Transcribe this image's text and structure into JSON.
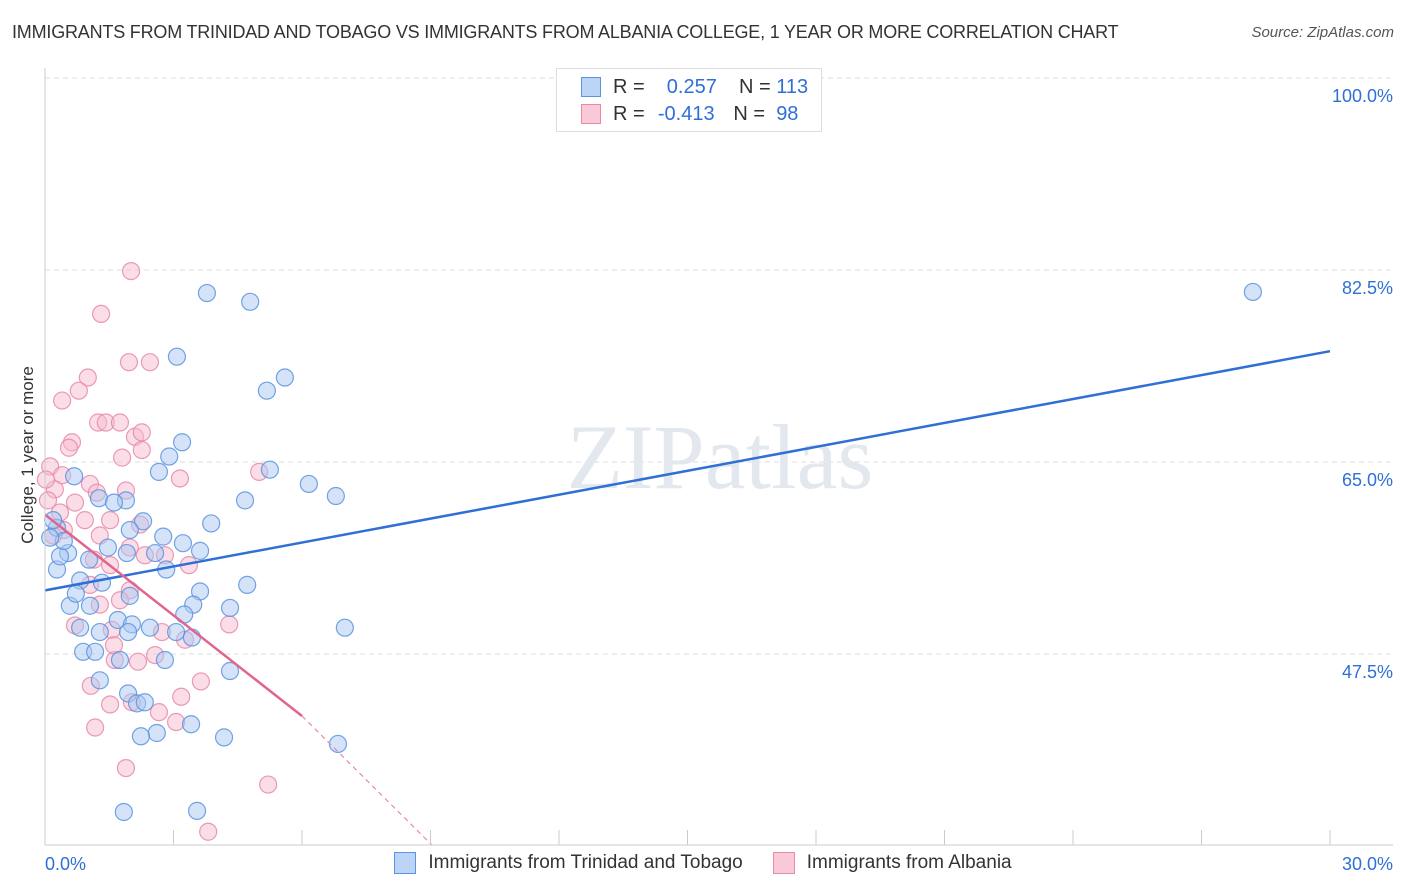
{
  "title": "IMMIGRANTS FROM TRINIDAD AND TOBAGO VS IMMIGRANTS FROM ALBANIA COLLEGE, 1 YEAR OR MORE CORRELATION CHART",
  "source": "Source: ZipAtlas.com",
  "watermark": "ZIPatlas",
  "legend": [
    {
      "r_label": "R =",
      "r": "0.257",
      "n_label": "N =",
      "n": "113"
    },
    {
      "r_label": "R =",
      "r": "-0.413",
      "n_label": "N =",
      "n": "98"
    }
  ],
  "chart_data": {
    "type": "scatter",
    "title": "IMMIGRANTS FROM TRINIDAD AND TOBAGO VS IMMIGRANTS FROM ALBANIA COLLEGE, 1 YEAR OR MORE CORRELATION CHART",
    "xlabel": "",
    "ylabel": "College, 1 year or more",
    "xlim": [
      0,
      30
    ],
    "ylim": [
      30.1,
      100
    ],
    "x_tick_labels": [
      "0.0%",
      "30.0%"
    ],
    "y_ticks": [
      100,
      82.5,
      65,
      47.5
    ],
    "y_tick_labels": [
      "100.0%",
      "82.5%",
      "65.0%",
      "47.5%"
    ],
    "grid": true,
    "legend_placement": "top-center",
    "series": [
      {
        "name": "Immigrants from Trinidad and Tobago",
        "color": "#5b93e0",
        "fill": "#a9c8f2",
        "trend": {
          "x": [
            0,
            30
          ],
          "y": [
            53.3,
            75.1
          ]
        },
        "points": [
          [
            3.78,
            80.4
          ],
          [
            4.79,
            79.6
          ],
          [
            28.2,
            80.5
          ],
          [
            3.08,
            74.6
          ],
          [
            5.6,
            72.7
          ],
          [
            5.18,
            71.5
          ],
          [
            3.2,
            66.8
          ],
          [
            2.9,
            65.5
          ],
          [
            2.66,
            64.1
          ],
          [
            5.25,
            64.3
          ],
          [
            0.68,
            63.7
          ],
          [
            4.67,
            61.5
          ],
          [
            6.16,
            63.0
          ],
          [
            6.79,
            61.9
          ],
          [
            1.89,
            61.5
          ],
          [
            1.26,
            61.7
          ],
          [
            1.61,
            61.3
          ],
          [
            3.88,
            59.4
          ],
          [
            2.29,
            59.6
          ],
          [
            0.28,
            59.0
          ],
          [
            1.98,
            58.8
          ],
          [
            3.62,
            56.9
          ],
          [
            2.76,
            58.2
          ],
          [
            3.22,
            57.6
          ],
          [
            0.54,
            56.7
          ],
          [
            1.03,
            56.1
          ],
          [
            1.47,
            57.2
          ],
          [
            1.91,
            56.7
          ],
          [
            2.57,
            56.7
          ],
          [
            2.83,
            55.2
          ],
          [
            0.28,
            55.2
          ],
          [
            0.82,
            54.2
          ],
          [
            1.33,
            54.0
          ],
          [
            4.72,
            53.8
          ],
          [
            3.62,
            53.2
          ],
          [
            3.46,
            52.0
          ],
          [
            4.32,
            51.7
          ],
          [
            3.25,
            51.1
          ],
          [
            1.98,
            52.8
          ],
          [
            0.58,
            51.9
          ],
          [
            1.05,
            51.9
          ],
          [
            1.7,
            50.6
          ],
          [
            2.03,
            50.2
          ],
          [
            3.06,
            49.5
          ],
          [
            3.43,
            49.0
          ],
          [
            7.0,
            49.9
          ],
          [
            0.82,
            49.9
          ],
          [
            1.28,
            49.5
          ],
          [
            1.94,
            49.5
          ],
          [
            2.45,
            49.9
          ],
          [
            0.89,
            47.7
          ],
          [
            1.17,
            47.7
          ],
          [
            2.8,
            46.95
          ],
          [
            1.75,
            46.95
          ],
          [
            4.32,
            45.95
          ],
          [
            1.28,
            45.1
          ],
          [
            1.94,
            43.9
          ],
          [
            2.15,
            43.0
          ],
          [
            2.33,
            43.1
          ],
          [
            3.41,
            41.1
          ],
          [
            2.61,
            40.3
          ],
          [
            2.24,
            40.0
          ],
          [
            4.18,
            39.9
          ],
          [
            6.84,
            39.3
          ],
          [
            1.84,
            33.1
          ],
          [
            3.55,
            33.2
          ],
          [
            0.35,
            56.4
          ],
          [
            0.44,
            57.8
          ],
          [
            0.12,
            58.1
          ],
          [
            0.19,
            59.7
          ],
          [
            0.72,
            53.0
          ]
        ]
      },
      {
        "name": "Immigrants from Albania",
        "color": "#e88aa8",
        "fill": "#f6bccd",
        "trend": {
          "x": [
            0,
            6.0
          ],
          "y": [
            60.2,
            41.85
          ]
        },
        "trend_dashed": {
          "x": [
            6.0,
            9.03
          ],
          "y": [
            41.85,
            30.1
          ]
        },
        "points": [
          [
            2.01,
            82.4
          ],
          [
            1.31,
            78.5
          ],
          [
            1.96,
            74.1
          ],
          [
            2.45,
            74.1
          ],
          [
            1.0,
            72.7
          ],
          [
            0.79,
            71.5
          ],
          [
            0.4,
            70.6
          ],
          [
            1.24,
            68.6
          ],
          [
            1.42,
            68.6
          ],
          [
            1.75,
            68.6
          ],
          [
            2.1,
            67.3
          ],
          [
            2.26,
            67.7
          ],
          [
            1.8,
            65.4
          ],
          [
            2.26,
            66.1
          ],
          [
            0.63,
            66.8
          ],
          [
            0.56,
            66.3
          ],
          [
            3.15,
            63.5
          ],
          [
            5.0,
            64.1
          ],
          [
            0.12,
            64.6
          ],
          [
            0.4,
            63.8
          ],
          [
            1.05,
            63.0
          ],
          [
            1.89,
            62.4
          ],
          [
            1.21,
            62.2
          ],
          [
            0.23,
            62.5
          ],
          [
            0.7,
            61.3
          ],
          [
            0.35,
            60.4
          ],
          [
            0.93,
            59.7
          ],
          [
            1.52,
            59.7
          ],
          [
            0.44,
            58.8
          ],
          [
            1.28,
            58.3
          ],
          [
            1.98,
            57.2
          ],
          [
            2.33,
            56.5
          ],
          [
            2.8,
            56.5
          ],
          [
            3.36,
            55.6
          ],
          [
            1.52,
            55.6
          ],
          [
            1.98,
            53.3
          ],
          [
            1.05,
            53.8
          ],
          [
            1.28,
            52.0
          ],
          [
            1.75,
            52.4
          ],
          [
            2.73,
            49.5
          ],
          [
            0.7,
            50.1
          ],
          [
            1.56,
            49.7
          ],
          [
            4.3,
            50.2
          ],
          [
            3.27,
            48.8
          ],
          [
            2.57,
            47.4
          ],
          [
            1.63,
            46.95
          ],
          [
            2.17,
            46.8
          ],
          [
            1.61,
            48.3
          ],
          [
            1.07,
            44.6
          ],
          [
            1.52,
            42.9
          ],
          [
            2.03,
            43.1
          ],
          [
            3.18,
            43.6
          ],
          [
            2.66,
            42.2
          ],
          [
            3.64,
            45.0
          ],
          [
            3.06,
            41.3
          ],
          [
            1.17,
            40.8
          ],
          [
            1.89,
            37.1
          ],
          [
            5.21,
            35.6
          ],
          [
            3.81,
            31.3
          ],
          [
            0.02,
            63.4
          ],
          [
            0.07,
            61.5
          ],
          [
            0.19,
            58.3
          ],
          [
            1.14,
            56.1
          ],
          [
            2.22,
            59.3
          ]
        ]
      }
    ]
  }
}
